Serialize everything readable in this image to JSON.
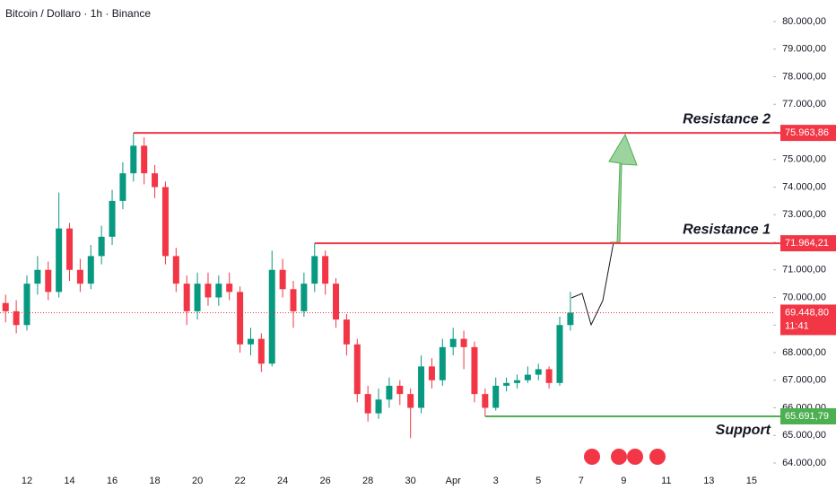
{
  "chart_data": {
    "type": "candlestick",
    "title": "Bitcoin / Dollaro · 1h · Binance",
    "up_color": "#089981",
    "down_color": "#f23645",
    "grid": false,
    "ylim": [
      64000,
      80000
    ],
    "yticks": [
      {
        "value": 64000,
        "label": "64.000,00"
      },
      {
        "value": 65000,
        "label": "65.000,00"
      },
      {
        "value": 66000,
        "label": "66.000,00"
      },
      {
        "value": 67000,
        "label": "67.000,00"
      },
      {
        "value": 68000,
        "label": "68.000,00"
      },
      {
        "value": 69000,
        "label": "69.000,00"
      },
      {
        "value": 70000,
        "label": "70.000,00"
      },
      {
        "value": 71000,
        "label": "71.000,00"
      },
      {
        "value": 72000,
        "label": "72.000,00"
      },
      {
        "value": 73000,
        "label": "73.000,00"
      },
      {
        "value": 74000,
        "label": "74.000,00"
      },
      {
        "value": 75000,
        "label": "75.000,00"
      },
      {
        "value": 76000,
        "label": "76.000,00"
      },
      {
        "value": 77000,
        "label": "77.000,00"
      },
      {
        "value": 78000,
        "label": "78.000,00"
      },
      {
        "value": 79000,
        "label": "79.000,00"
      },
      {
        "value": 80000,
        "label": "80.000,00"
      }
    ],
    "categories": [
      null,
      null,
      "12",
      null,
      null,
      null,
      "14",
      null,
      null,
      null,
      "16",
      null,
      null,
      null,
      "18",
      null,
      null,
      null,
      "20",
      null,
      null,
      null,
      "22",
      null,
      null,
      null,
      "24",
      null,
      null,
      null,
      "26",
      null,
      null,
      null,
      "28",
      null,
      null,
      null,
      "30",
      null,
      null,
      null,
      "Apr",
      null,
      null,
      null,
      "3",
      null,
      null,
      null,
      "5",
      null,
      null,
      null,
      "7",
      null,
      null,
      null,
      "9",
      null,
      null,
      null,
      "11",
      null,
      null,
      null,
      "13",
      null,
      null,
      null,
      "15",
      null,
      null
    ],
    "open": [
      69800,
      69500,
      69000,
      70500,
      71000,
      70200,
      72500,
      71000,
      70500,
      71500,
      72200,
      73500,
      74500,
      75500,
      74500,
      74000,
      71500,
      70500,
      69500,
      70500,
      70000,
      70500,
      70200,
      68300,
      68500,
      67600,
      71000,
      70300,
      69500,
      70500,
      71500,
      70500,
      69200,
      68300,
      66500,
      65800,
      66300,
      66800,
      66500,
      66000,
      67500,
      67000,
      68200,
      68500,
      68200,
      66500,
      66000,
      66800,
      66900,
      67000,
      67200,
      67400,
      66900,
      69000,
      null,
      null,
      null,
      null,
      null,
      null,
      null,
      null,
      null,
      null,
      null,
      null,
      null,
      null,
      null,
      null,
      null,
      null,
      null
    ],
    "high": [
      70100,
      69900,
      70800,
      71500,
      71300,
      73800,
      72700,
      71400,
      71900,
      72600,
      73900,
      74900,
      75963.86,
      75800,
      74800,
      74200,
      71800,
      70800,
      70900,
      70900,
      70800,
      70900,
      70400,
      68900,
      68700,
      71700,
      71400,
      70600,
      70900,
      71964.21,
      71700,
      70700,
      69400,
      68500,
      66800,
      66700,
      67100,
      67000,
      66700,
      67900,
      67800,
      68500,
      68900,
      68800,
      68400,
      66700,
      67100,
      67100,
      67200,
      67500,
      67600,
      67500,
      69300,
      70200,
      null,
      null,
      null,
      null,
      null,
      null,
      null,
      null,
      null,
      null,
      null,
      null,
      null,
      null,
      null,
      null,
      null,
      null,
      null
    ],
    "low": [
      69100,
      68700,
      68800,
      70100,
      69900,
      70000,
      70600,
      70200,
      70300,
      71200,
      71900,
      73200,
      74200,
      74100,
      73600,
      71200,
      70200,
      69000,
      69200,
      69700,
      69700,
      69900,
      68000,
      67900,
      67300,
      67500,
      70000,
      68900,
      69300,
      70200,
      70100,
      68900,
      67900,
      66200,
      65500,
      65600,
      66000,
      66100,
      64900,
      65800,
      66700,
      66800,
      67900,
      67400,
      66200,
      65691.79,
      65900,
      66600,
      66700,
      66900,
      67000,
      66700,
      66800,
      68800,
      null,
      null,
      null,
      null,
      null,
      null,
      null,
      null,
      null,
      null,
      null,
      null,
      null,
      null,
      null,
      null,
      null,
      null,
      null
    ],
    "close": [
      69500,
      69000,
      70500,
      71000,
      70200,
      72500,
      71000,
      70500,
      71500,
      72200,
      73500,
      74500,
      75500,
      74500,
      74000,
      71500,
      70500,
      69500,
      70500,
      70000,
      70500,
      70200,
      68300,
      68500,
      67600,
      71000,
      70300,
      69500,
      70500,
      71500,
      70500,
      69200,
      68300,
      66500,
      65800,
      66300,
      66800,
      66500,
      66000,
      67500,
      67000,
      68200,
      68500,
      68200,
      66500,
      66000,
      66800,
      66900,
      67000,
      67200,
      67400,
      66900,
      69000,
      69448.8,
      null,
      null,
      null,
      null,
      null,
      null,
      null,
      null,
      null,
      null,
      null,
      null,
      null,
      null,
      null,
      null,
      null,
      null,
      null
    ],
    "levels": [
      {
        "name": "Resistance 2",
        "value": 75963.86,
        "value_label": "75.963,86",
        "color": "#f23645",
        "edge": "high"
      },
      {
        "name": "Resistance 1",
        "value": 71964.21,
        "value_label": "71.964,21",
        "color": "#f23645",
        "edge": "high"
      },
      {
        "name": "Support",
        "value": 65691.79,
        "value_label": "65.691,79",
        "color": "#4caf50",
        "edge": "low"
      }
    ],
    "last": {
      "value": 69448.8,
      "label": "69.448,80",
      "countdown": "11:41",
      "color": "#f23645"
    }
  }
}
